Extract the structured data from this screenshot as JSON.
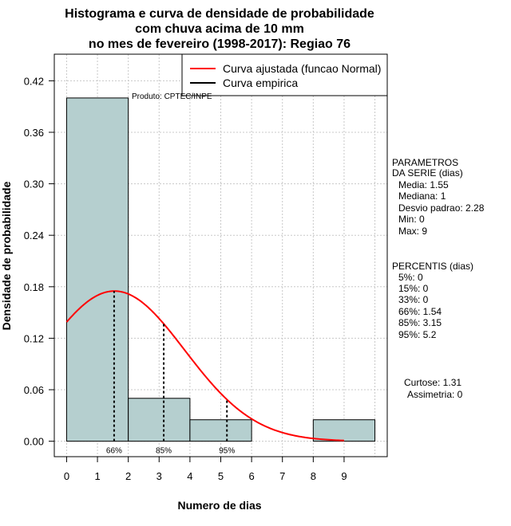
{
  "chart_data": {
    "type": "bar",
    "title_lines": [
      "Histograma e curva de densidade de probabilidade",
      "com chuva acima de 10 mm",
      "no mes de fevereiro (1998-2017): Regiao 76"
    ],
    "xlabel": "Numero de dias",
    "ylabel": "Densidade de probabilidade",
    "xlim": [
      -0.4,
      10.4
    ],
    "ylim": [
      -0.018,
      0.451
    ],
    "x_ticks": [
      0,
      1,
      2,
      3,
      4,
      5,
      6,
      7,
      8,
      9
    ],
    "y_ticks": [
      0.0,
      0.06,
      0.12,
      0.18,
      0.24,
      0.3,
      0.36,
      0.42
    ],
    "y_tick_labels": [
      "0.00",
      "0.06",
      "0.12",
      "0.18",
      "0.24",
      "0.30",
      "0.36",
      "0.42"
    ],
    "grid_x": [
      0,
      1,
      2,
      3,
      4,
      5,
      6,
      7,
      8,
      9,
      10
    ],
    "grid": true,
    "bins": [
      {
        "x0": 0,
        "x1": 2,
        "density": 0.4
      },
      {
        "x0": 2,
        "x1": 4,
        "density": 0.05
      },
      {
        "x0": 4,
        "x1": 6,
        "density": 0.025
      },
      {
        "x0": 6,
        "x1": 8,
        "density": 0.0
      },
      {
        "x0": 8,
        "x1": 10,
        "density": 0.025
      }
    ],
    "normal_curve": {
      "mean": 1.55,
      "sd": 2.28,
      "x_start": 0,
      "x_end": 9,
      "color": "#ff0000"
    },
    "percentile_lines": [
      {
        "label": "66%",
        "x": 1.54
      },
      {
        "label": "85%",
        "x": 3.15
      },
      {
        "label": "95%",
        "x": 5.2
      }
    ],
    "legend": {
      "position": "top-right",
      "entries": [
        {
          "label": "Curva ajustada (funcao Normal)",
          "color": "#ff0000"
        },
        {
          "label": "Curva empirica",
          "color": "#000000"
        }
      ]
    },
    "annotation": "Produto: CPTEC/INPE",
    "bar_color": "#b5cfcf",
    "side_panel": {
      "params_title_1": "PARAMETROS",
      "params_title_2": "DA SERIE (dias)",
      "params": [
        "Media: 1.55",
        "Mediana: 1",
        "Desvio padrao: 2.28",
        "Min: 0",
        "Max: 9"
      ],
      "pct_title": "PERCENTIS (dias)",
      "percentis": [
        "5%: 0",
        "15%: 0",
        "33%: 0",
        "66%: 1.54",
        "85%: 3.15",
        "95%: 5.2"
      ],
      "curtose": "Curtose: 1.31",
      "assimetria": "Assimetria: 0"
    }
  }
}
